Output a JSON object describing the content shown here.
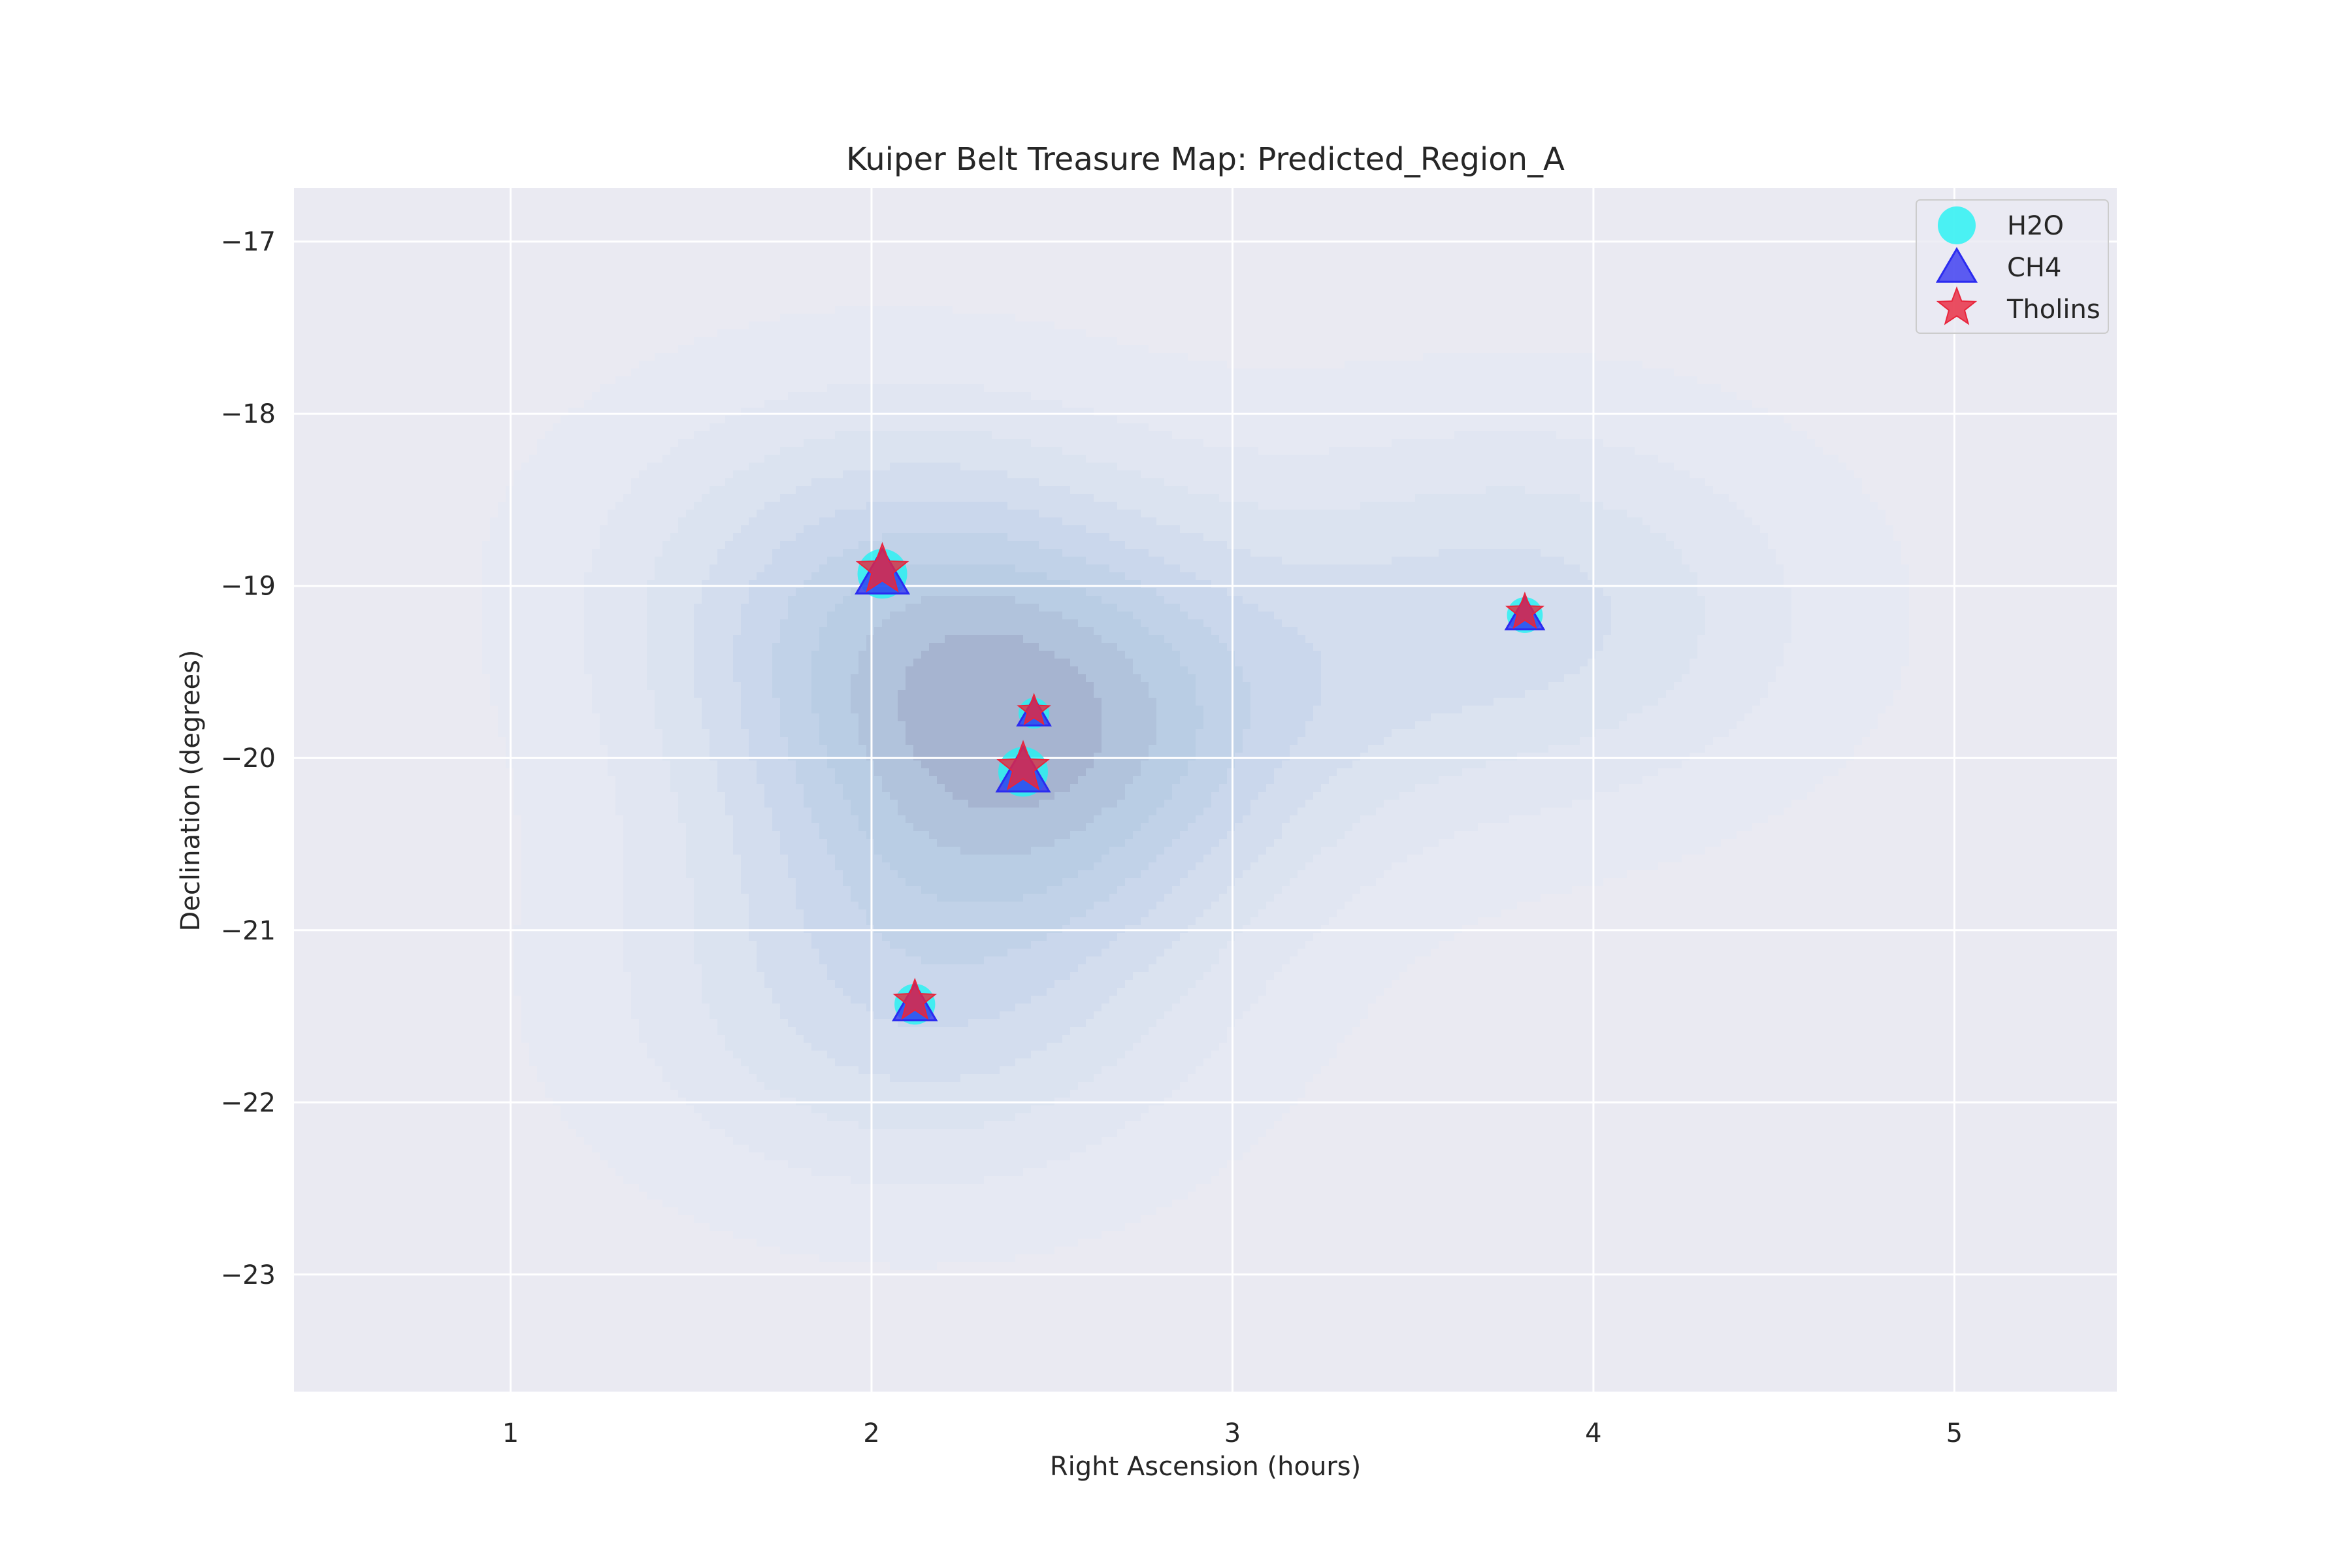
{
  "chart_data": {
    "type": "scatter",
    "title": "Kuiper Belt Treasure Map: Predicted_Region_A",
    "xlabel": "Right Ascension (hours)",
    "ylabel": "Declination (degrees)",
    "xlim": [
      0.4,
      5.45
    ],
    "ylim": [
      -23.68,
      -16.69
    ],
    "x_ticks": [
      1,
      2,
      3,
      4,
      5
    ],
    "y_ticks": [
      -17,
      -18,
      -19,
      -20,
      -21,
      -22,
      -23
    ],
    "x_tick_labels": [
      "1",
      "2",
      "3",
      "4",
      "5"
    ],
    "y_tick_labels": [
      "−17",
      "−18",
      "−19",
      "−20",
      "−21",
      "−22",
      "−23"
    ],
    "grid": true,
    "legend_position": "top-right",
    "density_background": "kernel density contours of object positions",
    "points": [
      {
        "x": 2.03,
        "y": -18.93,
        "size": 1.0
      },
      {
        "x": 2.45,
        "y": -19.74,
        "size": 0.62
      },
      {
        "x": 2.42,
        "y": -20.08,
        "size": 1.0
      },
      {
        "x": 2.12,
        "y": -21.43,
        "size": 0.82
      },
      {
        "x": 3.81,
        "y": -19.17,
        "size": 0.72
      }
    ],
    "series": [
      {
        "name": "H2O",
        "marker": "circle",
        "color": "#22f3f3"
      },
      {
        "name": "CH4",
        "marker": "triangle",
        "color": "#2b2bf0"
      },
      {
        "name": "Tholins",
        "marker": "star",
        "color": "#e8253c"
      }
    ],
    "colors": {
      "plot_background": "#eaeaf2",
      "grid": "#ffffff",
      "contour_fill": "#4682b4"
    }
  }
}
